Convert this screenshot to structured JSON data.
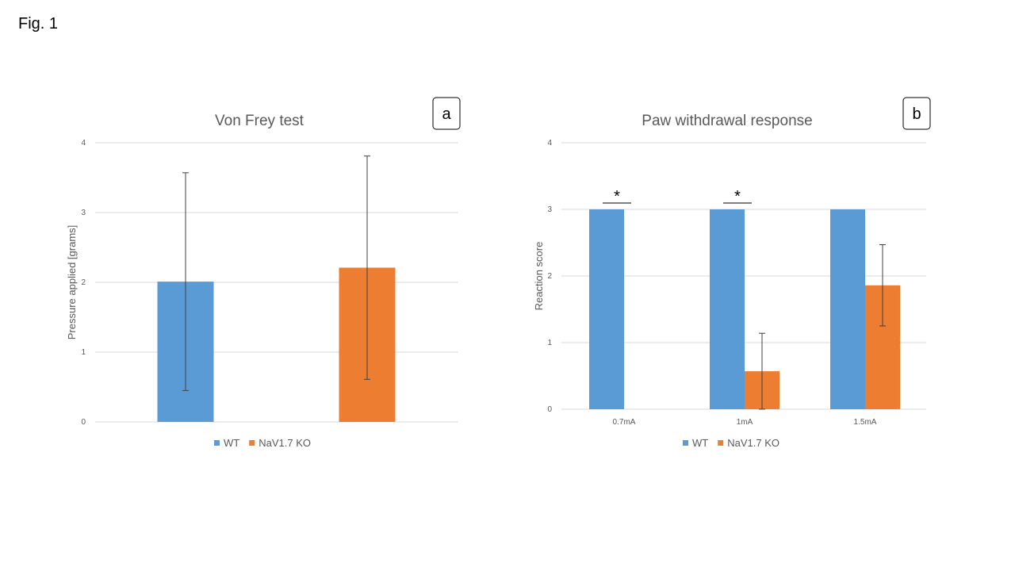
{
  "figure": {
    "label": "Fig. 1"
  },
  "colors": {
    "wt": "#5B9BD5",
    "ko": "#ED7D31",
    "grid": "#D9D9D9",
    "text": "#595959",
    "error": "#404040"
  },
  "chart_data": [
    {
      "panel": "a",
      "type": "bar",
      "title": "Von Frey test",
      "xlabel": "",
      "ylabel": "Pressure applied [grams]",
      "ylim": [
        0,
        4
      ],
      "yticks": [
        "0",
        "1",
        "2",
        "3",
        "4"
      ],
      "grid": true,
      "legend": "bottom",
      "categories": [
        ""
      ],
      "series": [
        {
          "name": "WT",
          "values": [
            2.01
          ],
          "err": [
            1.56
          ]
        },
        {
          "name": "NaV1.7 KO",
          "values": [
            2.21
          ],
          "err": [
            1.6
          ]
        }
      ]
    },
    {
      "panel": "b",
      "type": "bar",
      "title": "Paw withdrawal response",
      "xlabel": "",
      "ylabel": "Reaction score",
      "ylim": [
        0,
        4
      ],
      "yticks": [
        "0",
        "1",
        "2",
        "3",
        "4"
      ],
      "grid": true,
      "legend": "bottom",
      "categories": [
        "0.7mA",
        "1mA",
        "1.5mA"
      ],
      "series": [
        {
          "name": "WT",
          "values": [
            3,
            3,
            3
          ],
          "err": [
            0,
            0,
            0
          ]
        },
        {
          "name": "NaV1.7 KO",
          "values": [
            0,
            0.57,
            1.86
          ],
          "err": [
            0,
            0.57,
            0.61
          ]
        }
      ],
      "annotations": [
        {
          "text": "*",
          "category": "0.7mA"
        },
        {
          "text": "*",
          "category": "1mA"
        }
      ]
    }
  ]
}
